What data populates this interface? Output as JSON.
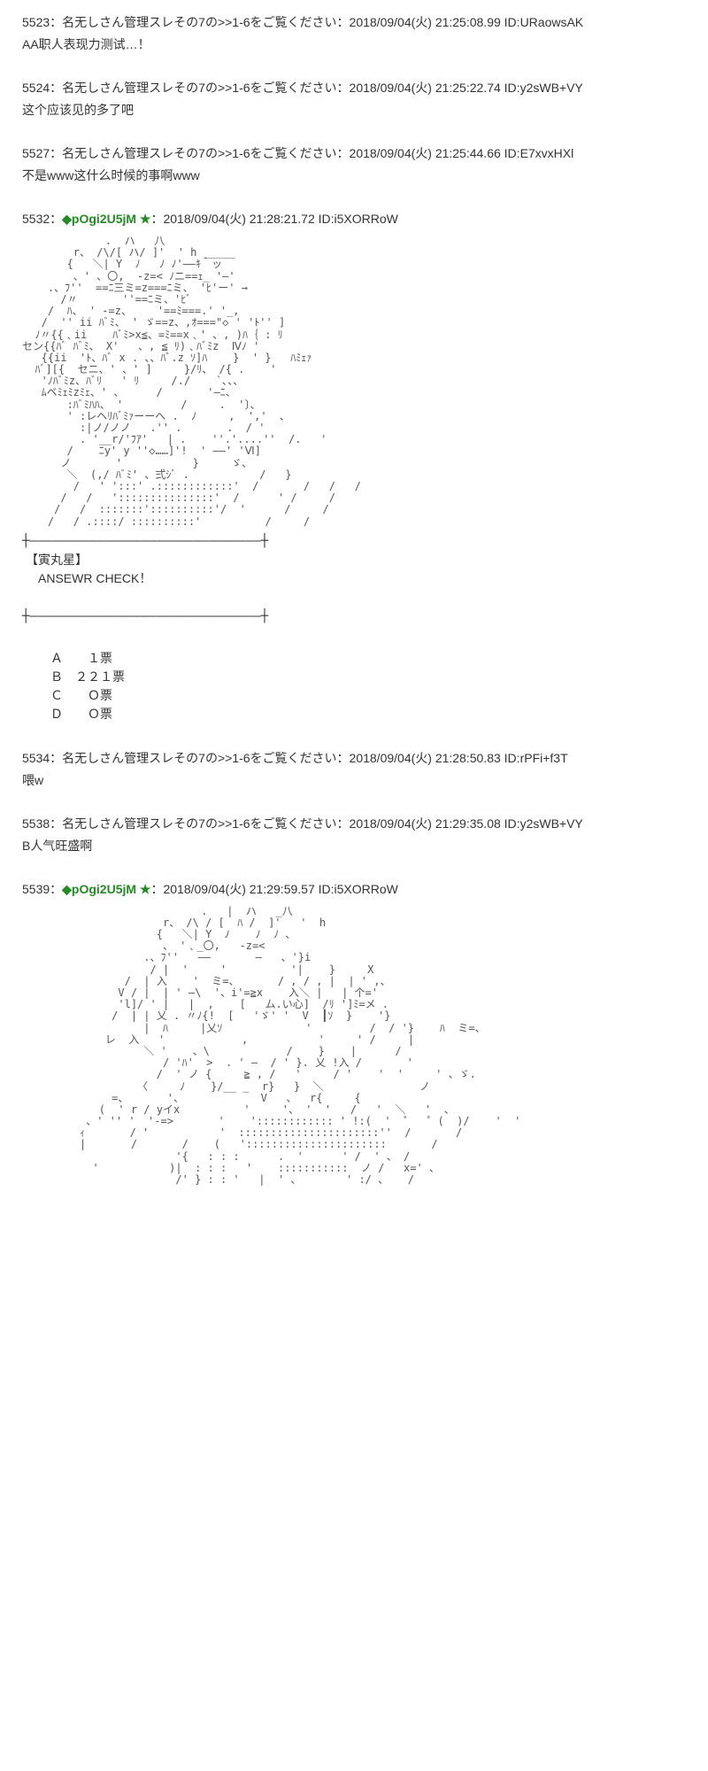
{
  "posts": [
    {
      "num": "5523",
      "name": "名无しさん管理スレその7の>>1-6をご覧ください",
      "trip": "",
      "date": "2018/09/04(火) 21:25:08.99",
      "id": "URaowsAK",
      "body": "AA职人表现力测试…！"
    },
    {
      "num": "5524",
      "name": "名无しさん管理スレその7の>>1-6をご覧ください",
      "trip": "",
      "date": "2018/09/04(火) 21:25:22.74",
      "id": "y2sWB+VY",
      "body": "这个应该见的多了吧"
    },
    {
      "num": "5527",
      "name": "名无しさん管理スレその7の>>1-6をご覧ください",
      "trip": "",
      "date": "2018/09/04(火) 21:25:44.66",
      "id": "E7xvxHXl",
      "body": "不是www这什么时候的事啊www"
    },
    {
      "num": "5532",
      "name": "",
      "trip": "◆pOgi2U5jM ★",
      "date": "2018/09/04(火) 21:28:21.72",
      "id": "i5XORRoW",
      "body": "",
      "aa1": "             .  ハ   八\n        r、 /\\/[ ハ/ ]'  ' h _____\n       {   ＼| Y  ﾉ   ﾉ ﾉ'――ｷ｀ッ\n        、' 、〇,  -z=< ﾉニ==ｪ_ '―'\n    .、ﾌ''  ==ﾆ三ミ=z===ﾆミ、 'ﾋ'ー' →\n      /〃       ''==ﾆミ、'ﾋﾞ\n    /  ﾊ、 ' -=z、    '==ﾐ===.' '_,\n   /  '' ii ﾊﾞﾐ、 ' ゞ==z、,ｵ===\"◇ ' 'ﾄ'' ]\n  ﾉ〃{{﹑ii    ﾊﾞﾐ>x≦、=ﾐ==x﹑' 、, )ﾊ｛ : ﾘ\nセン{{ﾊﾞ ﾊﾞﾐ、 X'   、, ≦ ﾘ)﹑ﾊﾞﾐz  Ⅳﾉ '\n   {{ii  'ﾄ、ﾊﾞ x . 、、ﾊﾞ.z ｿ]ﾊ    }  ' }   ﾊﾐｪｧ\n  ﾊﾞ][{  セニ、' 、' ]     }/ﾘ、 /{ .    '\n   'ﾉﾊﾞﾐz、ﾊﾞﾘ   ' ﾘ     /./    `､、、\n   ﾑベﾐｪﾐzﾐｪ、' 、     /       '―ﾆ、\n       :ﾊﾞﾐﾊﾊ、 '         /     .  '〕、\n       ' :レヘﾘﾊﾞﾐｧーーへ .  ﾉ     ,  ','  ､\n         :|ノ/ノノ   .'' .       .  / '\n         . '__r/'ﾌｱ'   | .    ''.'....''  /.   '\n       /    ﾆy' y ''◇……]'!  ' ――' 'Ⅵ]\n      ノ       '           }     ゞ、\n       ＼  (,/ ﾊﾞﾐ' 、弍ｼﾞ .           /   }\n        /   ' ':::' .::::::::::::'  /       /   /   /\n      /   /   ':::::::::::::::'  /      ' /     /\n     /   /  :::::::'::::::::::'/  '      /     /\n    /   / .::::/ ::::::::::'          /     /",
      "char_name": "【寅丸星】",
      "answer": "ANSEWR CHECK！",
      "votes": "　Ａ　　１票\n　Ｂ　２２１票\n　Ｃ　　Ｏ票\n　Ｄ　　Ｏ票"
    },
    {
      "num": "5534",
      "name": "名无しさん管理スレその7の>>1-6をご覧ください",
      "trip": "",
      "date": "2018/09/04(火) 21:28:50.83",
      "id": "rPFi+f3T",
      "body": "喂w"
    },
    {
      "num": "5538",
      "name": "名无しさん管理スレその7の>>1-6をご覧ください",
      "trip": "",
      "date": "2018/09/04(火) 21:29:35.08",
      "id": "y2sWB+VY",
      "body": "B人气旺盛啊"
    },
    {
      "num": "5539",
      "name": "",
      "trip": "◆pOgi2U5jM ★",
      "date": "2018/09/04(火) 21:29:59.57",
      "id": "i5XORRoW",
      "body": "",
      "aa2": "                            .   |  ハ   _八\n                      r、 /\\ / [  ﾊ /  ]'   '  h\n                     {   ＼| Y  ﾉ    ﾉ  ﾉ 、\n                      、 '﹑_〇,   -z=<\n                   .、ﾌ''   ――       ―   、'}i\n                    / |  '     '          '|    }     X\n                /  | 入    '  ミ=、      / , / , |  | ' ,、\n               V / |  | ' ―\\  '、i'=≧x    入＼ |   | 个='\n               'l]/ ' |   |  ,    [   ム.い心]  /ﾘ ']ﾐ=メ .\n              /  | | 乂 . 〃ﾉ{!  [   'ゞ' '  V  ┃ｿ  }    '}\n                   |  ﾊ     |乂ｿ             '         /  / '}    ﾊ  ミ=、\n             レ  入   '            ,           '     ' /     |\n                   ＼ '    、\\            /    }    |      /\n                      / 'ﾊ'  >  . ' ―  / ' }. 乂 !入 /       '\n                     /  ' ノ {     ≧ , /   '     / '    '  '     ' 、ゞ.\n                  〈     ﾉ    }/__ _  r}   }  ＼               ノ\n              =、      '、            V   、  r{     {\n            (  ' r / yイx          '     '、 '  '   /   '  ＼   '  、\n          、' '' '  '-=>       '    ':::::::::::: ' !:(  '  ゜  ゜(  )/    '  '\n         ｨ       / '           '  ::::::::::::::::::::::''  /       /\n         |       /       /    (   '::::::::::::::::::::::       /\n                        '{   : : :      .  '      ' /  ' 、 /\n           '           )|  : : :   '    :::::::::::  ノ /   x=' 、\n                        /' } : : '   |  ' 、       ' :/ 、   /"
    }
  ],
  "divider": "┼―――――――――――――――――――――――――――――――┼"
}
